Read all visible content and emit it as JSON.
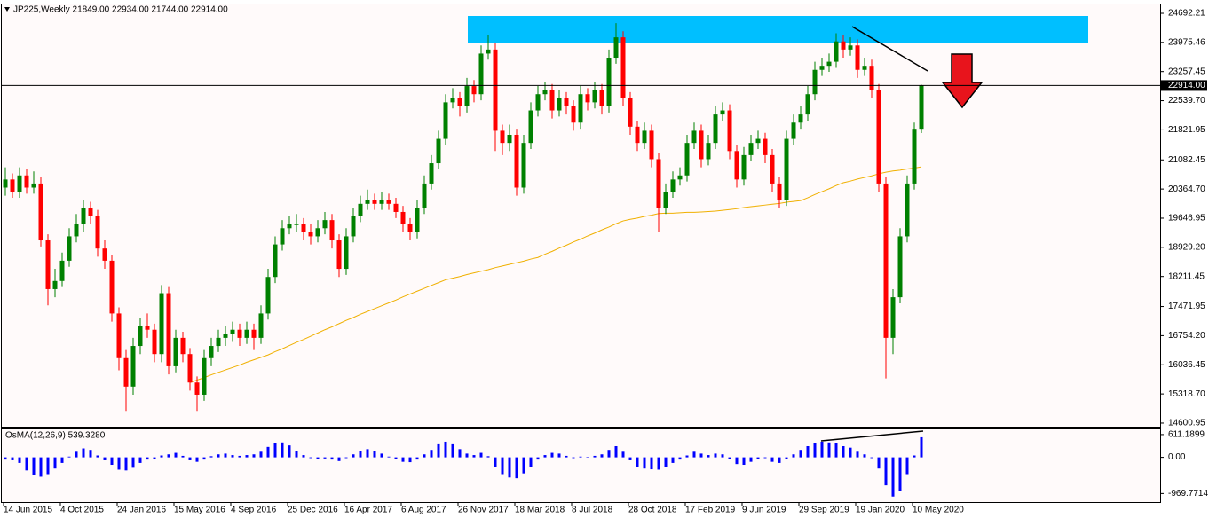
{
  "chart_data": [
    {
      "type": "candlestick",
      "title": "JP225,Weekly  21849.00 22934.00 21744.00 22914.00",
      "colors": {
        "up": "#008000",
        "down": "#ff0000"
      },
      "ylim": [
        14513,
        24911
      ],
      "yticks": [
        24692.21,
        23975.46,
        23257.45,
        {
          "value": 22539.7,
          "label": "22539.70"
        },
        21821.95,
        21082.45,
        {
          "value": 20364.7,
          "label": "20364.70"
        },
        19646.95,
        {
          "value": 18929.2,
          "label": "18929.20"
        },
        18211.45,
        17471.95,
        {
          "value": 16754.2,
          "label": "16754.20"
        },
        16036.45,
        {
          "value": 15318.7,
          "label": "15318.70"
        },
        14600.95
      ],
      "price_line": {
        "value": 22914,
        "label": "22914.00"
      },
      "categories": [
        "14 Jun 2015",
        null,
        null,
        null,
        null,
        null,
        null,
        null,
        "4 Oct 2015",
        null,
        null,
        null,
        null,
        null,
        null,
        null,
        "24 Jan 2016",
        null,
        null,
        null,
        null,
        null,
        null,
        null,
        "15 May 2016",
        null,
        null,
        null,
        null,
        null,
        null,
        null,
        "4 Sep 2016",
        null,
        null,
        null,
        null,
        null,
        null,
        null,
        "25 Dec 2016",
        null,
        null,
        null,
        null,
        null,
        null,
        null,
        "16 Apr 2017",
        null,
        null,
        null,
        null,
        null,
        null,
        null,
        "6 Aug 2017",
        null,
        null,
        null,
        null,
        null,
        null,
        null,
        "26 Nov 2017",
        null,
        null,
        null,
        null,
        null,
        null,
        null,
        "18 Mar 2018",
        null,
        null,
        null,
        null,
        null,
        null,
        null,
        "8 Jul 2018",
        null,
        null,
        null,
        null,
        null,
        null,
        null,
        "28 Oct 2018",
        null,
        null,
        null,
        null,
        null,
        null,
        null,
        "17 Feb 2019",
        null,
        null,
        null,
        null,
        null,
        null,
        null,
        "9 Jun 2019",
        null,
        null,
        null,
        null,
        null,
        null,
        null,
        "29 Sep 2019",
        null,
        null,
        null,
        null,
        null,
        null,
        null,
        "19 Jan 2020",
        null,
        null,
        null,
        null,
        null,
        null,
        null,
        "10 May 2020",
        null
      ],
      "ohlc": [
        [
          20400,
          20900,
          20200,
          20600
        ],
        [
          20600,
          20750,
          20150,
          20300
        ],
        [
          20300,
          20900,
          20150,
          20700
        ],
        [
          20700,
          20850,
          20250,
          20400
        ],
        [
          20400,
          20800,
          20250,
          20500
        ],
        [
          20500,
          20650,
          18950,
          19100
        ],
        [
          19100,
          19250,
          17500,
          17900
        ],
        [
          17900,
          18400,
          17700,
          18100
        ],
        [
          18100,
          18800,
          17950,
          18600
        ],
        [
          18600,
          19400,
          18450,
          19200
        ],
        [
          19200,
          19750,
          19050,
          19500
        ],
        [
          19500,
          20100,
          19300,
          19900
        ],
        [
          19900,
          20050,
          19500,
          19700
        ],
        [
          19700,
          19850,
          18700,
          18900
        ],
        [
          18900,
          19100,
          18400,
          18600
        ],
        [
          18600,
          18750,
          17100,
          17300
        ],
        [
          17300,
          17450,
          15900,
          16200
        ],
        [
          16200,
          16400,
          14900,
          15500
        ],
        [
          15500,
          16700,
          15300,
          16500
        ],
        [
          16500,
          17200,
          16300,
          17000
        ],
        [
          17000,
          17300,
          16700,
          16900
        ],
        [
          16900,
          17050,
          16100,
          16300
        ],
        [
          16300,
          18000,
          16100,
          17800
        ],
        [
          17800,
          17950,
          15800,
          16000
        ],
        [
          16000,
          16900,
          15850,
          16700
        ],
        [
          16700,
          16850,
          16100,
          16300
        ],
        [
          16300,
          16450,
          15400,
          15600
        ],
        [
          15600,
          15750,
          14900,
          15300
        ],
        [
          15300,
          16400,
          15150,
          16200
        ],
        [
          16200,
          16700,
          16000,
          16500
        ],
        [
          16500,
          16900,
          16350,
          16700
        ],
        [
          16700,
          17000,
          16500,
          16800
        ],
        [
          16800,
          17100,
          16600,
          16900
        ],
        [
          16900,
          17050,
          16500,
          16700
        ],
        [
          16700,
          17100,
          16550,
          16900
        ],
        [
          16900,
          17050,
          16400,
          16700
        ],
        [
          16700,
          17500,
          16550,
          17300
        ],
        [
          17300,
          18400,
          17150,
          18200
        ],
        [
          18200,
          19200,
          18050,
          19000
        ],
        [
          19000,
          19600,
          18850,
          19400
        ],
        [
          19400,
          19700,
          19250,
          19500
        ],
        [
          19500,
          19750,
          19300,
          19500
        ],
        [
          19500,
          19650,
          19100,
          19300
        ],
        [
          19300,
          19500,
          19000,
          19200
        ],
        [
          19200,
          19600,
          19050,
          19400
        ],
        [
          19400,
          19800,
          19250,
          19600
        ],
        [
          19600,
          19750,
          18900,
          19100
        ],
        [
          19100,
          19250,
          18200,
          18400
        ],
        [
          18400,
          19400,
          18250,
          19200
        ],
        [
          19200,
          19900,
          19050,
          19700
        ],
        [
          19700,
          20200,
          19550,
          20000
        ],
        [
          20000,
          20350,
          19850,
          20100
        ],
        [
          20100,
          20250,
          19850,
          20000
        ],
        [
          20000,
          20300,
          19850,
          20100
        ],
        [
          20100,
          20250,
          19850,
          20000
        ],
        [
          20000,
          20150,
          19650,
          19800
        ],
        [
          19800,
          19950,
          19300,
          19500
        ],
        [
          19500,
          19650,
          19100,
          19300
        ],
        [
          19300,
          20100,
          19150,
          19900
        ],
        [
          19900,
          20700,
          19750,
          20500
        ],
        [
          20500,
          21200,
          20350,
          21000
        ],
        [
          21000,
          21800,
          20850,
          21600
        ],
        [
          21600,
          22700,
          21450,
          22500
        ],
        [
          22500,
          22850,
          22350,
          22600
        ],
        [
          22600,
          22750,
          22150,
          22400
        ],
        [
          22400,
          23100,
          22250,
          22900
        ],
        [
          22900,
          23050,
          22500,
          22700
        ],
        [
          22700,
          23900,
          22550,
          23700
        ],
        [
          23700,
          24150,
          23550,
          23800
        ],
        [
          23800,
          23950,
          21300,
          21800
        ],
        [
          21800,
          21950,
          21200,
          21500
        ],
        [
          21500,
          21950,
          21300,
          21700
        ],
        [
          21700,
          21850,
          20200,
          20400
        ],
        [
          20400,
          21700,
          20250,
          21500
        ],
        [
          21500,
          22500,
          21350,
          22300
        ],
        [
          22300,
          22900,
          22150,
          22700
        ],
        [
          22700,
          23000,
          22550,
          22800
        ],
        [
          22800,
          22950,
          22100,
          22300
        ],
        [
          22300,
          22800,
          22150,
          22600
        ],
        [
          22600,
          22750,
          22200,
          22400
        ],
        [
          22400,
          22550,
          21800,
          22000
        ],
        [
          22000,
          22900,
          21850,
          22700
        ],
        [
          22700,
          22850,
          22300,
          22500
        ],
        [
          22500,
          23000,
          22350,
          22800
        ],
        [
          22800,
          22950,
          22200,
          22400
        ],
        [
          22400,
          23800,
          22250,
          23600
        ],
        [
          23600,
          24450,
          23450,
          24100
        ],
        [
          24100,
          24250,
          22400,
          22600
        ],
        [
          22600,
          22750,
          21700,
          21900
        ],
        [
          21900,
          22050,
          21300,
          21500
        ],
        [
          21500,
          22000,
          21350,
          21800
        ],
        [
          21800,
          21950,
          20900,
          21100
        ],
        [
          21100,
          21250,
          19300,
          19900
        ],
        [
          19900,
          20500,
          19750,
          20300
        ],
        [
          20300,
          20800,
          20150,
          20600
        ],
        [
          20600,
          20900,
          20450,
          20700
        ],
        [
          20700,
          21700,
          20550,
          21500
        ],
        [
          21500,
          22000,
          21350,
          21800
        ],
        [
          21800,
          21950,
          20900,
          21100
        ],
        [
          21100,
          21700,
          20950,
          21500
        ],
        [
          21500,
          22400,
          21350,
          22200
        ],
        [
          22200,
          22500,
          22050,
          22300
        ],
        [
          22300,
          22450,
          21100,
          21300
        ],
        [
          21300,
          21450,
          20400,
          20600
        ],
        [
          20600,
          21400,
          20450,
          21200
        ],
        [
          21200,
          21700,
          21050,
          21500
        ],
        [
          21500,
          21800,
          21350,
          21600
        ],
        [
          21600,
          21750,
          21000,
          21200
        ],
        [
          21200,
          21350,
          20300,
          20500
        ],
        [
          20500,
          20650,
          19900,
          20100
        ],
        [
          20100,
          21800,
          19950,
          21600
        ],
        [
          21600,
          22200,
          21450,
          22000
        ],
        [
          22000,
          22400,
          21850,
          22200
        ],
        [
          22200,
          22900,
          22050,
          22700
        ],
        [
          22700,
          23500,
          22550,
          23300
        ],
        [
          23300,
          23600,
          23150,
          23400
        ],
        [
          23400,
          23700,
          23250,
          23500
        ],
        [
          23500,
          24200,
          23350,
          24000
        ],
        [
          24000,
          24150,
          23600,
          23800
        ],
        [
          23800,
          24100,
          23650,
          23900
        ],
        [
          23900,
          24050,
          23100,
          23300
        ],
        [
          23300,
          23600,
          23150,
          23400
        ],
        [
          23400,
          23550,
          22600,
          22800
        ],
        [
          22800,
          22950,
          20300,
          20500
        ],
        [
          20500,
          20650,
          15700,
          16700
        ],
        [
          16700,
          17900,
          16300,
          17700
        ],
        [
          17700,
          19400,
          17550,
          19200
        ],
        [
          19200,
          20700,
          19050,
          20500
        ],
        [
          20500,
          22000,
          20350,
          21849
        ],
        [
          21849,
          22934,
          21744,
          22914
        ]
      ],
      "overlay": {
        "color": "#f0b000",
        "values": [
          null,
          null,
          null,
          null,
          null,
          null,
          null,
          null,
          null,
          null,
          null,
          null,
          null,
          null,
          null,
          null,
          null,
          null,
          null,
          null,
          null,
          null,
          null,
          null,
          null,
          null,
          15600,
          15660,
          15720,
          15790,
          15850,
          15910,
          15970,
          16030,
          16100,
          16160,
          16220,
          16280,
          16360,
          16430,
          16510,
          16590,
          16660,
          16740,
          16820,
          16900,
          16970,
          17050,
          17130,
          17200,
          17280,
          17350,
          17420,
          17490,
          17560,
          17630,
          17710,
          17780,
          17850,
          17920,
          17990,
          18060,
          18130,
          18170,
          18210,
          18260,
          18300,
          18340,
          18380,
          18430,
          18470,
          18510,
          18550,
          18590,
          18640,
          18680,
          18760,
          18830,
          18910,
          18980,
          19060,
          19130,
          19210,
          19280,
          19360,
          19430,
          19510,
          19580,
          19620,
          19650,
          19690,
          19720,
          19760,
          19770,
          19770,
          19780,
          19790,
          19790,
          19800,
          19810,
          19820,
          19840,
          19860,
          19880,
          19910,
          19930,
          19950,
          19970,
          19990,
          20010,
          20040,
          20060,
          20080,
          20150,
          20230,
          20300,
          20370,
          20450,
          20520,
          20560,
          20610,
          20650,
          20690,
          20740,
          20780,
          20810,
          20830,
          20860,
          20880,
          20910
        ]
      }
    },
    {
      "type": "bar",
      "title": "OsMA(12,26,9) 539.3280",
      "color": "#0000ff",
      "ylim": [
        -1199,
        752
      ],
      "yticks": [
        611.1899,
        {
          "value": 0,
          "label": "0.00"
        },
        -969.7714
      ],
      "values": [
        -60,
        -80,
        -150,
        -350,
        -480,
        -520,
        -450,
        -300,
        -150,
        20,
        150,
        240,
        200,
        50,
        -80,
        -200,
        -330,
        -350,
        -280,
        -150,
        -60,
        -40,
        50,
        80,
        120,
        40,
        -80,
        -120,
        -60,
        30,
        80,
        100,
        60,
        40,
        60,
        80,
        150,
        280,
        380,
        400,
        320,
        180,
        60,
        -20,
        -40,
        -30,
        -60,
        -100,
        -20,
        80,
        180,
        220,
        180,
        100,
        20,
        -40,
        -120,
        -130,
        -60,
        80,
        200,
        350,
        420,
        350,
        220,
        100,
        60,
        120,
        30,
        -250,
        -450,
        -540,
        -560,
        -430,
        -250,
        -60,
        60,
        120,
        100,
        40,
        -20,
        20,
        10,
        40,
        80,
        200,
        300,
        150,
        -80,
        -250,
        -300,
        -320,
        -330,
        -250,
        -150,
        -60,
        50,
        150,
        100,
        60,
        100,
        80,
        -50,
        -180,
        -200,
        -120,
        -40,
        -20,
        -120,
        -150,
        -40,
        80,
        200,
        300,
        380,
        420,
        400,
        380,
        300,
        260,
        150,
        80,
        -20,
        -300,
        -750,
        -1050,
        -900,
        -450,
        50,
        539.328
      ]
    }
  ]
}
